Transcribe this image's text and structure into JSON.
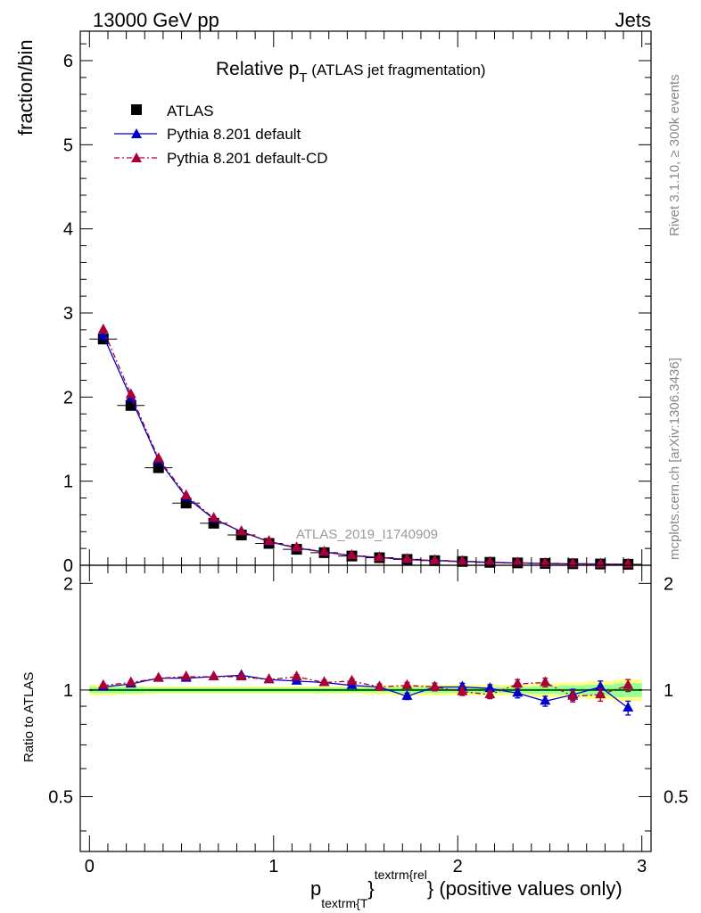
{
  "header": {
    "left": "13000 GeV pp",
    "right": "Jets"
  },
  "side_labels": {
    "rivet": "Rivet 3.1.10, ≥ 300k events",
    "mcplots": "mcplots.cern.ch [arXiv:1306.3436]"
  },
  "watermark": "ATLAS_2019_I1740909",
  "colors": {
    "data": "#000000",
    "default": "#0000cc",
    "cd": "#aa0033",
    "band_inner": "#99ff99",
    "band_outer": "#ffff88"
  },
  "chart_data": [
    {
      "type": "scatter",
      "title_main": "Relative p",
      "title_sub": "T",
      "title_rest": " (ATLAS jet fragmentation)",
      "ylabel": "fraction/bin",
      "ylim": [
        0,
        6.35
      ],
      "xlim": [
        -0.05,
        3.05
      ],
      "yticks": [
        0,
        1,
        2,
        3,
        4,
        5,
        6
      ],
      "legend": [
        "ATLAS",
        "Pythia 8.201 default",
        "Pythia 8.201 default-CD"
      ],
      "x": [
        0.075,
        0.225,
        0.375,
        0.525,
        0.675,
        0.825,
        0.975,
        1.125,
        1.275,
        1.425,
        1.575,
        1.725,
        1.875,
        2.025,
        2.175,
        2.325,
        2.475,
        2.625,
        2.775,
        2.925
      ],
      "series": [
        {
          "name": "ATLAS",
          "values": [
            2.69,
            1.9,
            1.16,
            0.74,
            0.5,
            0.36,
            0.26,
            0.19,
            0.15,
            0.11,
            0.09,
            0.07,
            0.055,
            0.045,
            0.035,
            0.028,
            0.022,
            0.018,
            0.015,
            0.012
          ]
        },
        {
          "name": "Pythia 8.201 default",
          "values": [
            2.73,
            1.99,
            1.25,
            0.81,
            0.55,
            0.4,
            0.28,
            0.205,
            0.157,
            0.114,
            0.092,
            0.067,
            0.056,
            0.046,
            0.035,
            0.027,
            0.02,
            0.017,
            0.015,
            0.011
          ]
        },
        {
          "name": "Pythia 8.201 default-CD",
          "values": [
            2.8,
            2.03,
            1.27,
            0.83,
            0.56,
            0.4,
            0.285,
            0.21,
            0.158,
            0.117,
            0.092,
            0.072,
            0.056,
            0.045,
            0.034,
            0.029,
            0.023,
            0.017,
            0.0145,
            0.0123
          ]
        }
      ]
    },
    {
      "type": "scatter",
      "ylabel": "Ratio to ATLAS",
      "xlabel_main": "p",
      "xlabel_sub": "textrm{T",
      "xlabel_sup": "textrm{rel",
      "xlabel_close": "}",
      "xlabel_rest": "} (positive values only)",
      "ylim": [
        0.35,
        2.25
      ],
      "xlim": [
        -0.05,
        3.05
      ],
      "yticks": [
        0.5,
        1,
        2
      ],
      "xticks": [
        0,
        1,
        2,
        3
      ],
      "x": [
        0.075,
        0.225,
        0.375,
        0.525,
        0.675,
        0.825,
        0.975,
        1.125,
        1.275,
        1.425,
        1.575,
        1.725,
        1.875,
        2.025,
        2.175,
        2.325,
        2.475,
        2.625,
        2.775,
        2.925
      ],
      "band_inner": [
        0.02,
        0.02,
        0.015,
        0.015,
        0.015,
        0.015,
        0.015,
        0.015,
        0.015,
        0.015,
        0.015,
        0.02,
        0.02,
        0.02,
        0.02,
        0.02,
        0.025,
        0.03,
        0.035,
        0.045
      ],
      "band_outer": [
        0.035,
        0.03,
        0.025,
        0.025,
        0.025,
        0.025,
        0.025,
        0.025,
        0.025,
        0.025,
        0.03,
        0.035,
        0.035,
        0.035,
        0.035,
        0.035,
        0.045,
        0.05,
        0.06,
        0.07
      ],
      "series": [
        {
          "name": "Pythia 8.201 default",
          "values": [
            1.02,
            1.04,
            1.08,
            1.08,
            1.09,
            1.1,
            1.07,
            1.06,
            1.05,
            1.03,
            1.02,
            0.96,
            1.02,
            1.02,
            1.01,
            0.98,
            0.93,
            0.97,
            1.02,
            0.89
          ],
          "errors": [
            0.01,
            0.01,
            0.01,
            0.01,
            0.01,
            0.01,
            0.01,
            0.015,
            0.015,
            0.015,
            0.02,
            0.02,
            0.025,
            0.025,
            0.025,
            0.03,
            0.03,
            0.035,
            0.04,
            0.04
          ]
        },
        {
          "name": "Pythia 8.201 default-CD",
          "values": [
            1.03,
            1.05,
            1.08,
            1.09,
            1.09,
            1.09,
            1.07,
            1.09,
            1.05,
            1.06,
            1.02,
            1.03,
            1.02,
            0.99,
            0.97,
            1.04,
            1.05,
            0.96,
            0.97,
            1.03
          ],
          "errors": [
            0.01,
            0.01,
            0.01,
            0.01,
            0.01,
            0.01,
            0.01,
            0.015,
            0.015,
            0.015,
            0.02,
            0.02,
            0.025,
            0.025,
            0.025,
            0.03,
            0.03,
            0.035,
            0.04,
            0.04
          ]
        }
      ]
    }
  ]
}
